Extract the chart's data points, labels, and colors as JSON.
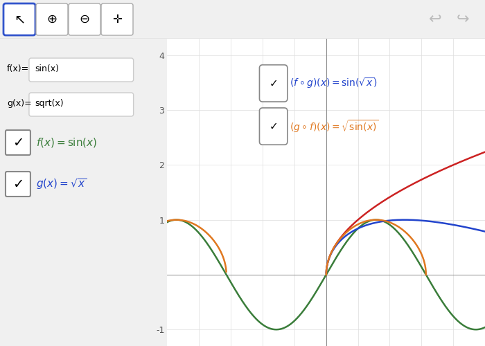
{
  "xlim": [
    -5.0,
    5.0
  ],
  "ylim": [
    -1.3,
    4.3
  ],
  "xticks": [
    -4,
    -3,
    -2,
    -1,
    1,
    2,
    3,
    4
  ],
  "yticks": [
    -1,
    1,
    2,
    3,
    4
  ],
  "bg_color": "#f0f0f0",
  "plot_bg_color": "#ffffff",
  "colors": {
    "f": "#3a7d3a",
    "g": "#cc2222",
    "fog": "#2244cc",
    "gof": "#e07820"
  },
  "toolbar_bg": "#e8e8e8",
  "panel_bg": "#f0f0f0",
  "checkbox_border": "#888888",
  "checkbox_border_blue": "#3344aa",
  "fog_label_color": "#2244cc",
  "gof_label_color": "#e07820",
  "f_label_color": "#3a7d3a",
  "g_label_color": "#2244cc"
}
